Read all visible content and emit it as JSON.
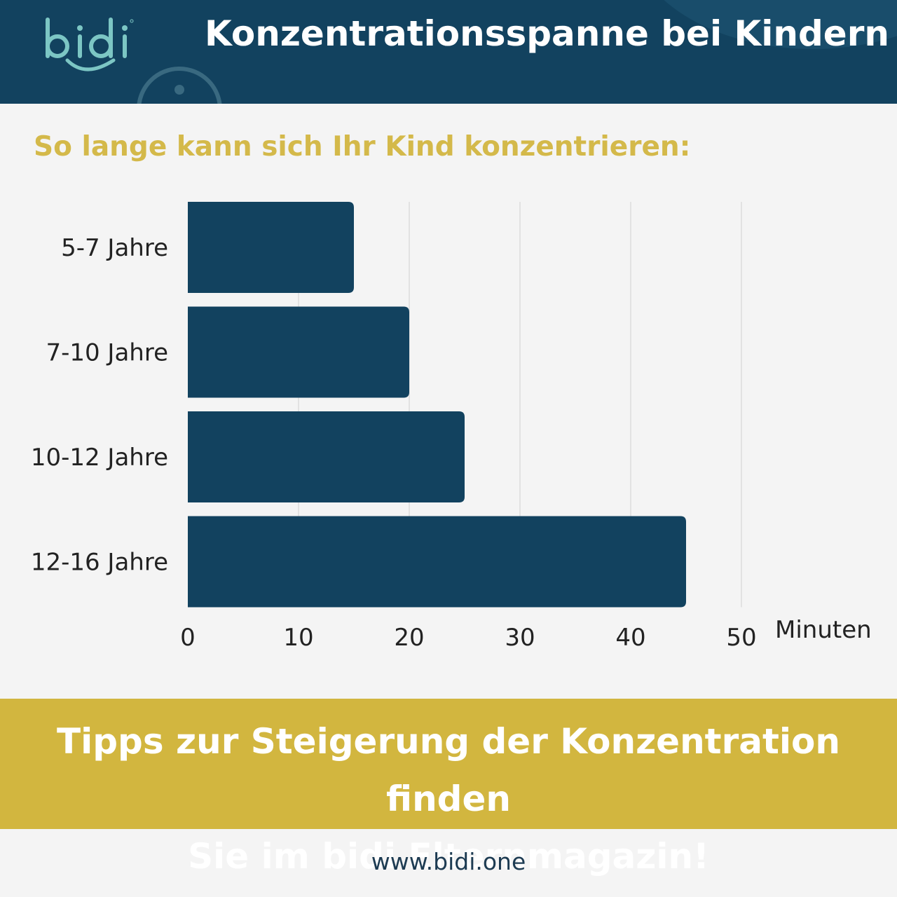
{
  "header": {
    "logo_text": "bidi",
    "title": "Konzentrationsspanne bei Kindern"
  },
  "subtitle": "So lange kann sich Ihr Kind konzentrieren:",
  "chart_data": {
    "type": "bar",
    "orientation": "horizontal",
    "categories": [
      "5-7 Jahre",
      "7-10 Jahre",
      "10-12 Jahre",
      "12-16 Jahre"
    ],
    "values": [
      15,
      20,
      25,
      45
    ],
    "xlabel": "Minuten",
    "xlim": [
      0,
      50
    ],
    "xticks": [
      0,
      10,
      20,
      30,
      40,
      50
    ],
    "grid": "vertical",
    "bar_color": "#12425f"
  },
  "banner": {
    "line1": "Tipps zur Steigerung der Konzentration finden",
    "line2": "Sie im bidi Elternmagazin!"
  },
  "footer": {
    "url": "www.bidi.one"
  },
  "colors": {
    "navy": "#12425f",
    "gold": "#d2b63f",
    "subtitle_gold": "#d4b94a",
    "teal_logo": "#7cc6c4",
    "background": "#f4f4f4"
  }
}
